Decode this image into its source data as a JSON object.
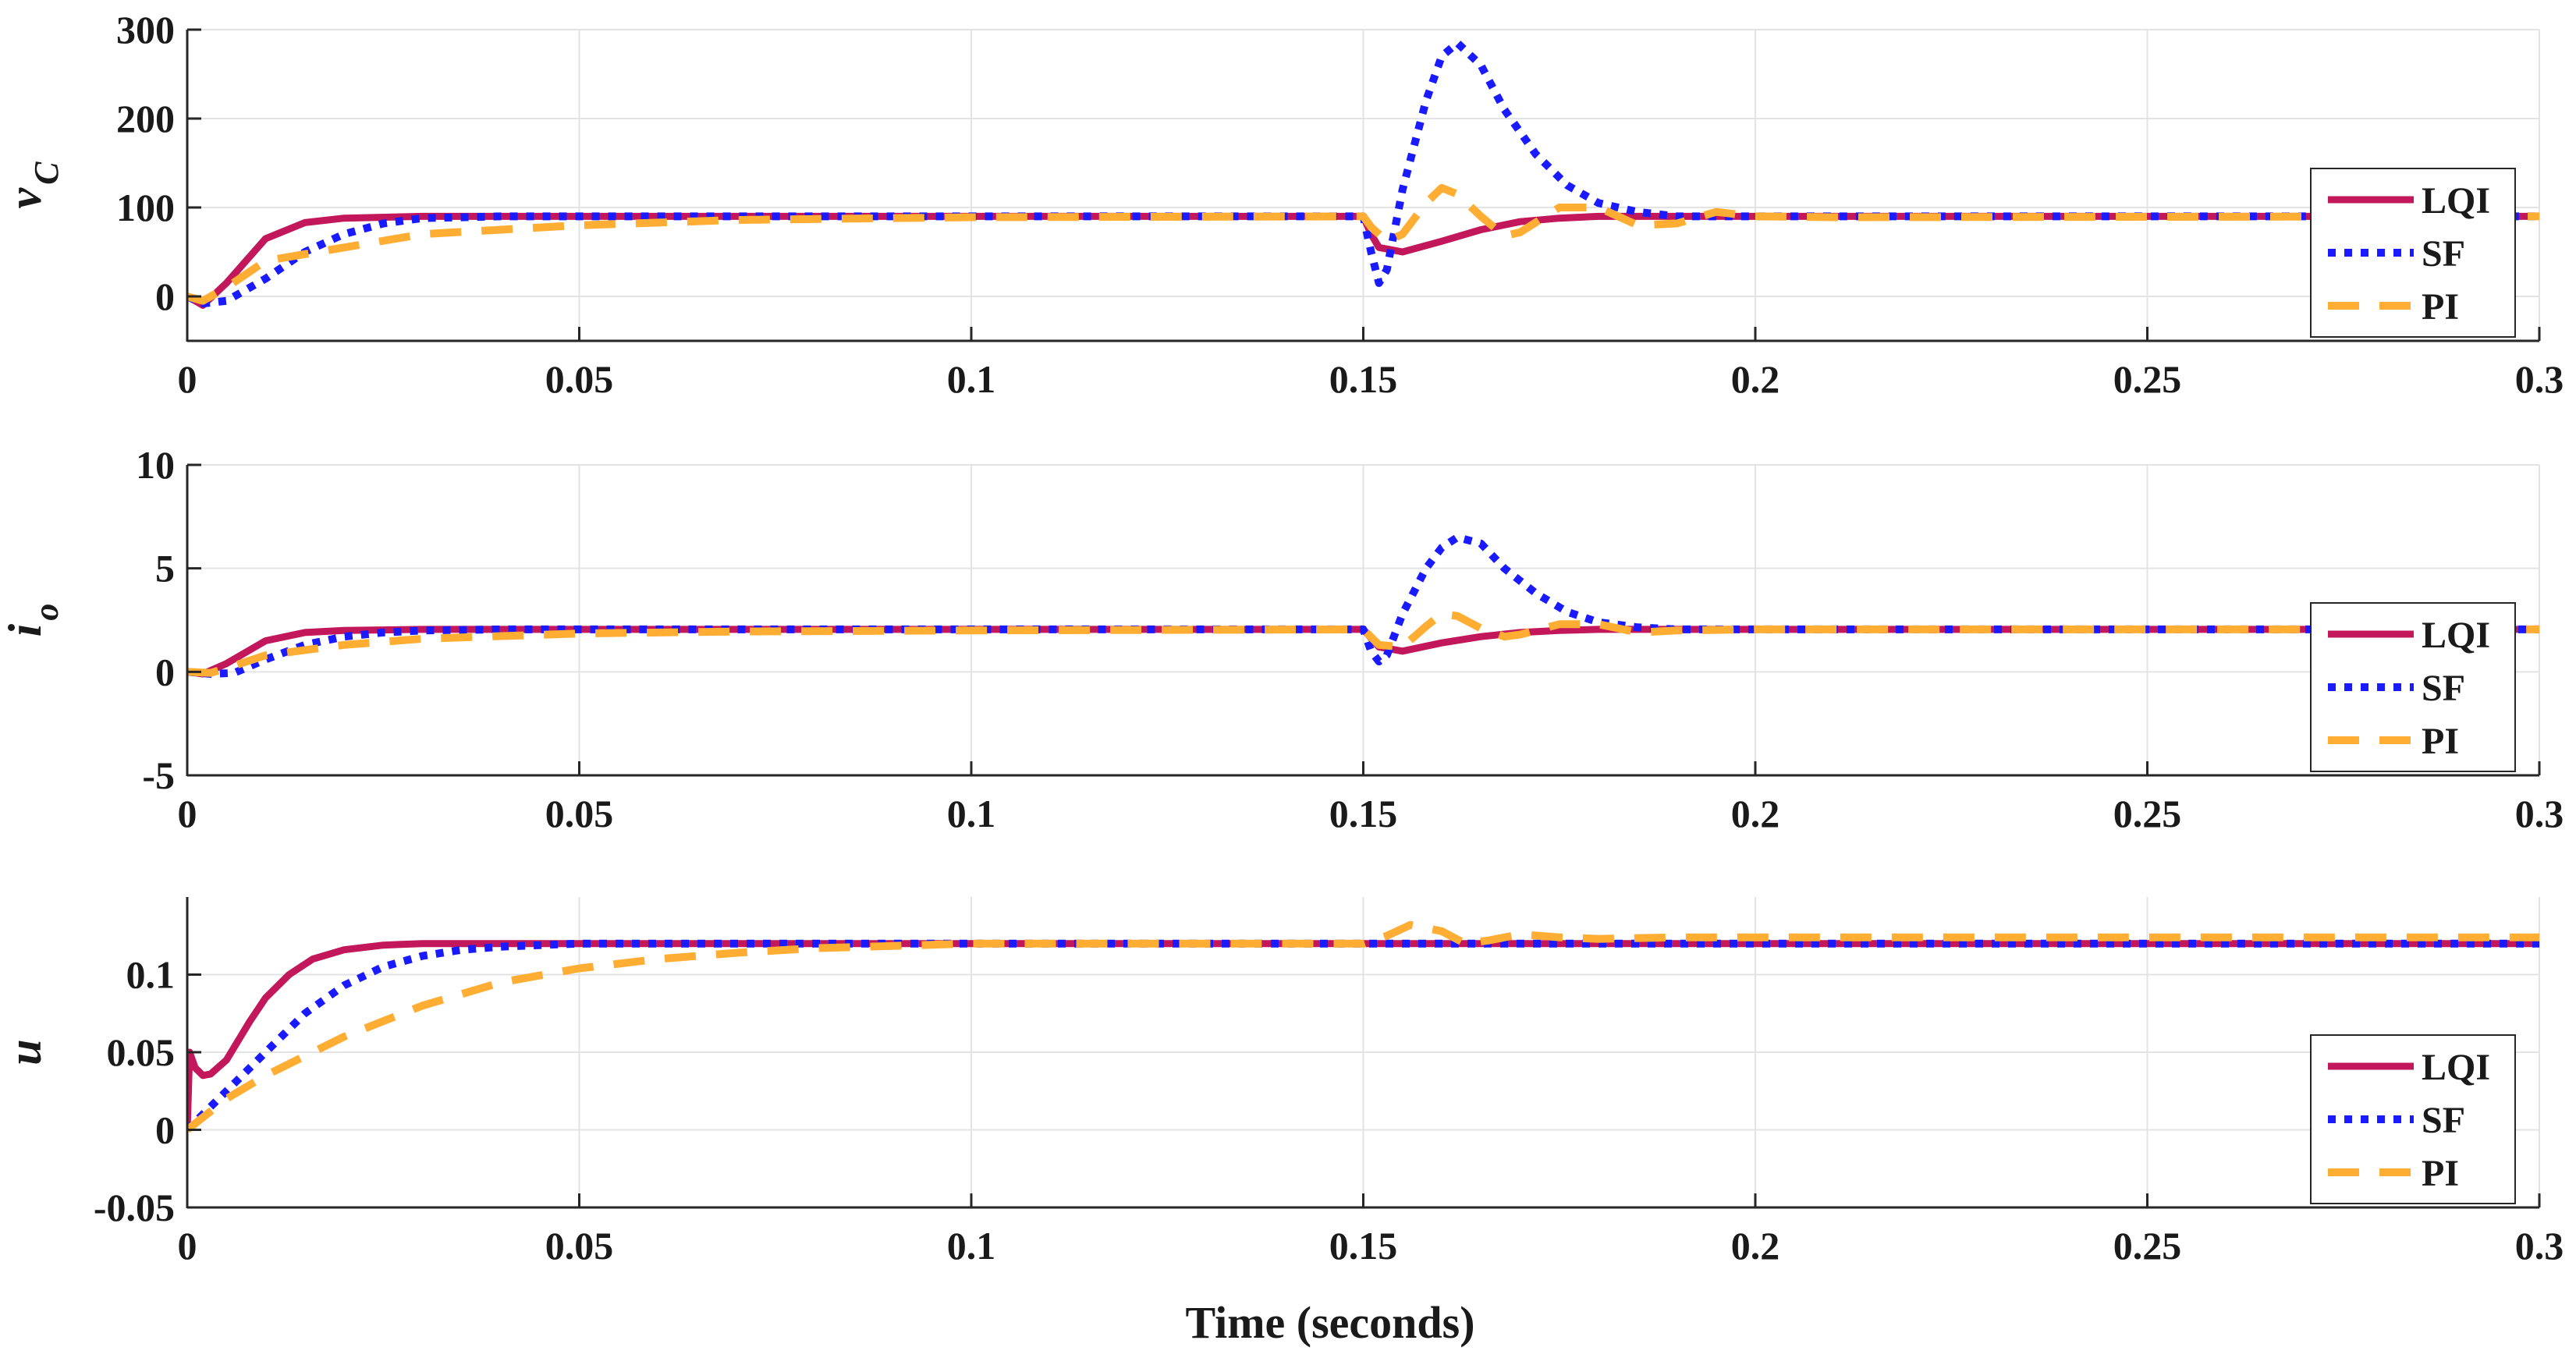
{
  "chart_data": [
    {
      "type": "line",
      "panel": "vC",
      "ylabel_main": "v",
      "ylabel_sub": "C",
      "xlim": [
        0,
        0.3
      ],
      "ylim": [
        -50,
        300
      ],
      "yticks": [
        0,
        100,
        200,
        300
      ],
      "ytick_labels": [
        "0",
        "100",
        "200",
        "300"
      ],
      "xticks": [
        0,
        0.05,
        0.1,
        0.15,
        0.2,
        0.25,
        0.3
      ],
      "xtick_labels": [
        "0",
        "0.05",
        "0.1",
        "0.15",
        "0.2",
        "0.25",
        "0.3"
      ],
      "legend": [
        "LQI",
        "SF",
        "PI"
      ],
      "legend_position": "right-lower",
      "series": [
        {
          "name": "LQI",
          "x": [
            0,
            0.002,
            0.005,
            0.01,
            0.015,
            0.02,
            0.03,
            0.15,
            0.151,
            0.152,
            0.155,
            0.16,
            0.165,
            0.17,
            0.175,
            0.18,
            0.3
          ],
          "y": [
            0,
            -10,
            15,
            65,
            83,
            88,
            90,
            90,
            70,
            55,
            50,
            62,
            75,
            84,
            88,
            90,
            90
          ]
        },
        {
          "name": "SF",
          "x": [
            0,
            0.002,
            0.005,
            0.01,
            0.015,
            0.02,
            0.025,
            0.03,
            0.04,
            0.15,
            0.151,
            0.152,
            0.153,
            0.155,
            0.158,
            0.16,
            0.162,
            0.165,
            0.168,
            0.172,
            0.176,
            0.18,
            0.185,
            0.19,
            0.3
          ],
          "y": [
            0,
            -8,
            -5,
            20,
            50,
            70,
            82,
            88,
            90,
            90,
            50,
            15,
            30,
            120,
            220,
            270,
            285,
            260,
            210,
            160,
            125,
            105,
            95,
            90,
            90
          ]
        },
        {
          "name": "PI",
          "x": [
            0,
            0.002,
            0.005,
            0.01,
            0.02,
            0.03,
            0.05,
            0.07,
            0.1,
            0.15,
            0.151,
            0.153,
            0.155,
            0.158,
            0.16,
            0.162,
            0.165,
            0.168,
            0.17,
            0.175,
            0.18,
            0.185,
            0.19,
            0.195,
            0.2,
            0.21,
            0.3
          ],
          "y": [
            0,
            -5,
            10,
            40,
            55,
            70,
            80,
            86,
            89,
            90,
            78,
            62,
            70,
            105,
            122,
            115,
            90,
            68,
            72,
            100,
            100,
            80,
            82,
            95,
            90,
            89,
            90
          ]
        }
      ]
    },
    {
      "type": "line",
      "panel": "io",
      "ylabel_main": "i",
      "ylabel_sub": "o",
      "xlim": [
        0,
        0.3
      ],
      "ylim": [
        -5,
        10
      ],
      "yticks": [
        -5,
        0,
        5,
        10
      ],
      "ytick_labels": [
        "-5",
        "0",
        "5",
        "10"
      ],
      "xticks": [
        0,
        0.05,
        0.1,
        0.15,
        0.2,
        0.25,
        0.3
      ],
      "xtick_labels": [
        "0",
        "0.05",
        "0.1",
        "0.15",
        "0.2",
        "0.25",
        "0.3"
      ],
      "legend": [
        "LQI",
        "SF",
        "PI"
      ],
      "legend_position": "right-lower",
      "series": [
        {
          "name": "LQI",
          "x": [
            0,
            0.002,
            0.005,
            0.01,
            0.015,
            0.02,
            0.03,
            0.15,
            0.152,
            0.155,
            0.16,
            0.165,
            0.17,
            0.175,
            0.18,
            0.3
          ],
          "y": [
            0,
            -0.1,
            0.4,
            1.5,
            1.9,
            2.0,
            2.05,
            2.05,
            1.2,
            1.0,
            1.4,
            1.7,
            1.9,
            2.0,
            2.05,
            2.05
          ]
        },
        {
          "name": "SF",
          "x": [
            0,
            0.003,
            0.006,
            0.01,
            0.015,
            0.02,
            0.025,
            0.03,
            0.04,
            0.15,
            0.151,
            0.152,
            0.153,
            0.155,
            0.158,
            0.16,
            0.162,
            0.165,
            0.168,
            0.172,
            0.176,
            0.18,
            0.185,
            0.19,
            0.3
          ],
          "y": [
            0,
            -0.1,
            -0.05,
            0.6,
            1.3,
            1.7,
            1.9,
            2.0,
            2.05,
            2.05,
            1.0,
            0.5,
            0.8,
            2.8,
            5.0,
            6.0,
            6.5,
            6.2,
            5.0,
            3.8,
            2.9,
            2.4,
            2.15,
            2.05,
            2.05
          ]
        },
        {
          "name": "PI",
          "x": [
            0,
            0.003,
            0.006,
            0.01,
            0.02,
            0.03,
            0.05,
            0.07,
            0.1,
            0.15,
            0.152,
            0.155,
            0.158,
            0.16,
            0.162,
            0.165,
            0.168,
            0.17,
            0.175,
            0.18,
            0.185,
            0.19,
            0.2,
            0.3
          ],
          "y": [
            0,
            -0.05,
            0.3,
            0.8,
            1.3,
            1.6,
            1.85,
            1.95,
            2.0,
            2.05,
            1.3,
            1.2,
            2.2,
            2.8,
            2.7,
            2.1,
            1.7,
            1.8,
            2.3,
            2.3,
            1.9,
            2.0,
            2.05,
            2.05
          ]
        }
      ]
    },
    {
      "type": "line",
      "panel": "u",
      "ylabel_main": "u",
      "ylabel_sub": "",
      "xlim": [
        0,
        0.3
      ],
      "ylim": [
        -0.05,
        0.15
      ],
      "yticks": [
        -0.05,
        0,
        0.05,
        0.1
      ],
      "ytick_labels": [
        "-0.05",
        "0",
        "0.05",
        "0.1"
      ],
      "xticks": [
        0,
        0.05,
        0.1,
        0.15,
        0.2,
        0.25,
        0.3
      ],
      "xtick_labels": [
        "0",
        "0.05",
        "0.1",
        "0.15",
        "0.2",
        "0.25",
        "0.3"
      ],
      "legend": [
        "LQI",
        "SF",
        "PI"
      ],
      "legend_position": "right-lower",
      "series": [
        {
          "name": "LQI",
          "x": [
            0,
            0.0003,
            0.001,
            0.002,
            0.003,
            0.005,
            0.008,
            0.01,
            0.013,
            0.016,
            0.02,
            0.025,
            0.03,
            0.3
          ],
          "y": [
            0,
            0.05,
            0.04,
            0.035,
            0.036,
            0.045,
            0.07,
            0.085,
            0.1,
            0.11,
            0.116,
            0.119,
            0.12,
            0.12
          ]
        },
        {
          "name": "SF",
          "x": [
            0,
            0.002,
            0.005,
            0.01,
            0.015,
            0.02,
            0.025,
            0.03,
            0.035,
            0.04,
            0.05,
            0.3
          ],
          "y": [
            0,
            0.01,
            0.025,
            0.05,
            0.075,
            0.093,
            0.105,
            0.112,
            0.116,
            0.118,
            0.12,
            0.12
          ]
        },
        {
          "name": "PI",
          "x": [
            0,
            0.005,
            0.01,
            0.02,
            0.03,
            0.04,
            0.05,
            0.06,
            0.07,
            0.08,
            0.1,
            0.15,
            0.153,
            0.156,
            0.16,
            0.163,
            0.166,
            0.17,
            0.175,
            0.18,
            0.19,
            0.3
          ],
          "y": [
            0,
            0.02,
            0.035,
            0.06,
            0.08,
            0.095,
            0.104,
            0.11,
            0.114,
            0.117,
            0.12,
            0.12,
            0.125,
            0.132,
            0.128,
            0.12,
            0.122,
            0.126,
            0.124,
            0.123,
            0.124,
            0.124
          ]
        }
      ]
    }
  ],
  "xlabel": "Time (seconds)",
  "series_colors": {
    "LQI": "#c2185b",
    "SF": "#1a1aff",
    "PI": "#ffad33"
  }
}
